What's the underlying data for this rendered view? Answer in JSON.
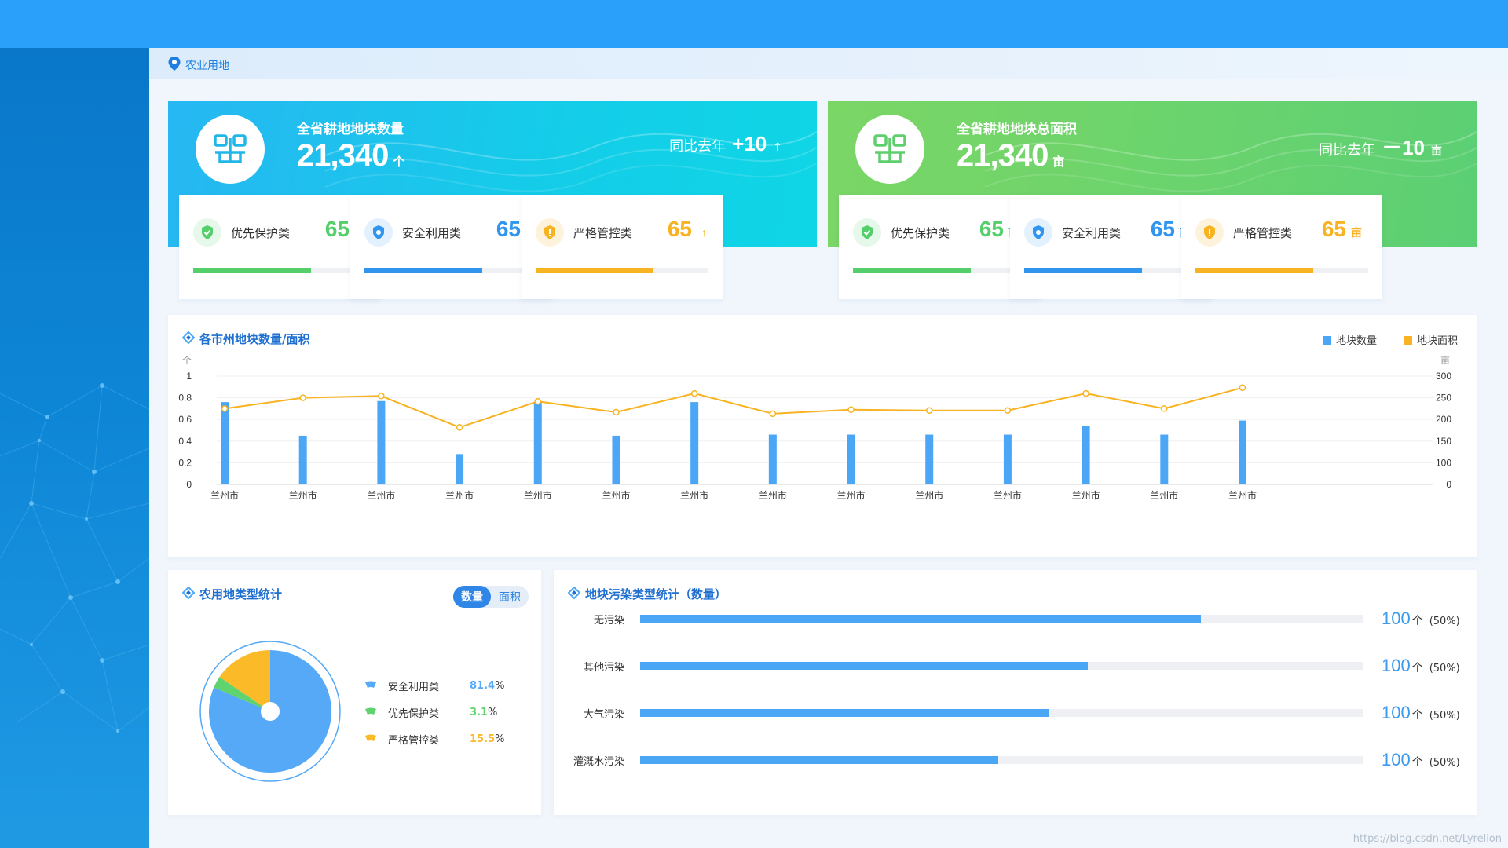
{
  "breadcrumb": {
    "label": "农业用地"
  },
  "kpis": [
    {
      "title": "全省耕地地块数量",
      "value": "21,340",
      "unit": "个",
      "compare_label": "同比去年",
      "delta": "+10",
      "delta_unit": "",
      "arrow": "↑",
      "items": [
        {
          "label": "优先保护类",
          "value": "65",
          "unit": "",
          "arrow": "↑",
          "color": "#54cf6c",
          "progress": 0.68
        },
        {
          "label": "安全利用类",
          "value": "65",
          "unit": "",
          "arrow": "↑",
          "color": "#2f95ef",
          "progress": 0.68
        },
        {
          "label": "严格管控类",
          "value": "65",
          "unit": "",
          "arrow": "↑",
          "color": "#f7b321",
          "progress": 0.68
        }
      ]
    },
    {
      "title": "全省耕地地块总面积",
      "value": "21,340",
      "unit": "亩",
      "compare_label": "同比去年",
      "delta": "－10",
      "delta_unit": "亩",
      "arrow": "",
      "items": [
        {
          "label": "优先保护类",
          "value": "65",
          "unit": "亩",
          "arrow": "",
          "color": "#54cf6c",
          "progress": 0.68
        },
        {
          "label": "安全利用类",
          "value": "65",
          "unit": "亩",
          "arrow": "",
          "color": "#2f95ef",
          "progress": 0.68
        },
        {
          "label": "严格管控类",
          "value": "65",
          "unit": "亩",
          "arrow": "",
          "color": "#f7b321",
          "progress": 0.68
        }
      ]
    }
  ],
  "city_chart_panel": {
    "title": "各市州地块数量/面积"
  },
  "pie_panel": {
    "title": "农用地类型统计",
    "toggle": [
      "数量",
      "面积"
    ]
  },
  "bar_panel": {
    "title": "地块污染类型统计（数量）"
  },
  "watermark": "https://blog.csdn.net/Lyrelion",
  "colors": {
    "primary": "#2aa0fb",
    "green": "#54cf6c",
    "orange": "#f7b321",
    "bar_blue": "#4ca6f6"
  },
  "chart_data": [
    {
      "type": "bar",
      "categories": [
        "兰州市",
        "兰州市",
        "兰州市",
        "兰州市",
        "兰州市",
        "兰州市",
        "兰州市",
        "兰州市",
        "兰州市",
        "兰州市",
        "兰州市",
        "兰州市",
        "兰州市",
        "兰州市"
      ],
      "series": [
        {
          "name": "地块数量",
          "type": "bar",
          "axis": "left",
          "color": "#4ca6f6",
          "values": [
            0.76,
            0.45,
            0.77,
            0.28,
            0.76,
            0.45,
            0.76,
            0.46,
            0.46,
            0.46,
            0.46,
            0.54,
            0.46,
            0.59
          ]
        },
        {
          "name": "地块面积",
          "type": "line",
          "axis": "right",
          "color": "#f7b321",
          "values": [
            210,
            240,
            245,
            158,
            230,
            200,
            252,
            196,
            207,
            205,
            205,
            252,
            210,
            268
          ]
        }
      ],
      "ylabel_left": "个",
      "ylabel_right": "亩",
      "ylim_left": [
        0,
        1
      ],
      "ylim_right": [
        0,
        300
      ],
      "yticks_left": [
        "0",
        "0.2",
        "0.4",
        "0.6",
        "0.8",
        "1"
      ],
      "yticks_right": [
        "0",
        "100",
        "150",
        "200",
        "250",
        "300"
      ],
      "legend": "top-right",
      "grid": true
    },
    {
      "type": "pie",
      "slices": [
        {
          "label": "安全利用类",
          "value": 81.4,
          "pct_num": "81.4",
          "pct_sign": "%",
          "color": "#55a9f7"
        },
        {
          "label": "优先保护类",
          "value": 3.1,
          "pct_num": "3.1",
          "pct_sign": "%",
          "color": "#5fd36e"
        },
        {
          "label": "严格管控类",
          "value": 15.5,
          "pct_num": "15.5",
          "pct_sign": "%",
          "color": "#fbba28"
        }
      ]
    },
    {
      "type": "bar",
      "orientation": "horizontal",
      "rows": [
        {
          "label": "无污染",
          "value": "100",
          "unit": "个",
          "pct": "(50%)",
          "fill": 0.776
        },
        {
          "label": "其他污染",
          "value": "100",
          "unit": "个",
          "pct": "(50%)",
          "fill": 0.62
        },
        {
          "label": "大气污染",
          "value": "100",
          "unit": "个",
          "pct": "(50%)",
          "fill": 0.565
        },
        {
          "label": "灌溉水污染",
          "value": "100",
          "unit": "个",
          "pct": "(50%)",
          "fill": 0.496
        }
      ]
    }
  ]
}
